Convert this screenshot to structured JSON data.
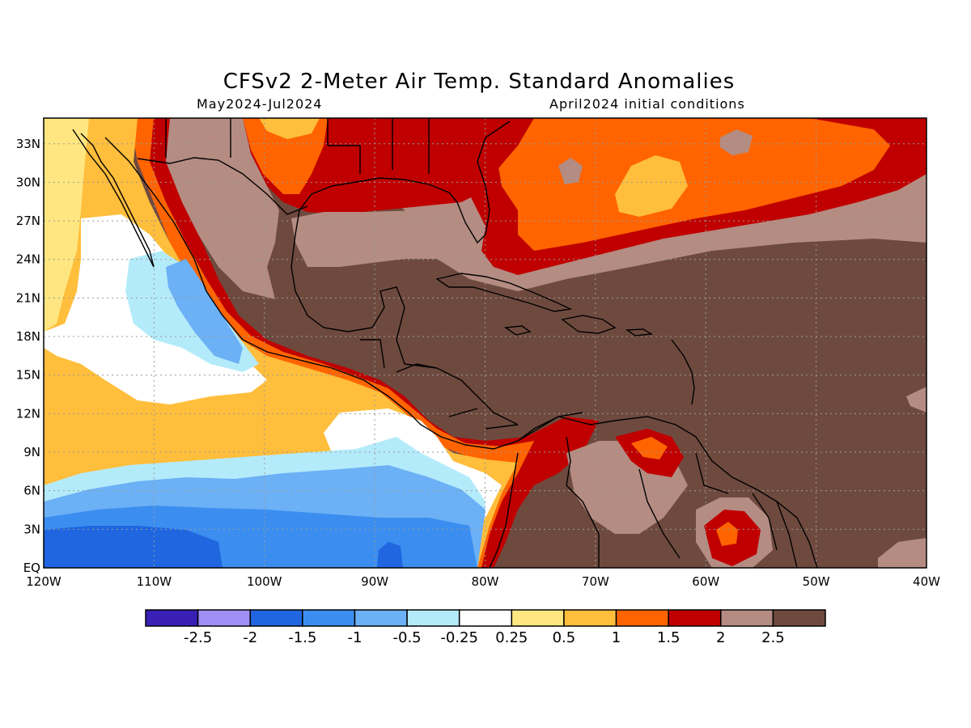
{
  "title": "CFSv2 2-Meter Air Temp. Standard Anomalies",
  "period": "May2024-Jul2024",
  "initial_conditions": "April2024 initial conditions",
  "lat_labels": [
    "33N",
    "30N",
    "27N",
    "24N",
    "21N",
    "18N",
    "15N",
    "12N",
    "9N",
    "6N",
    "3N",
    "EQ"
  ],
  "lon_labels": [
    "120W",
    "110W",
    "100W",
    "90W",
    "80W",
    "70W",
    "60W",
    "50W",
    "40W"
  ],
  "colorbar": {
    "colors": [
      "#3a1fb5",
      "#9f8ff5",
      "#1f66e0",
      "#3b8ef0",
      "#6cb0f5",
      "#b4ebfb",
      "#ffffff",
      "#ffe680",
      "#ffbe3c",
      "#ff6400",
      "#c00000",
      "#b48c82",
      "#6e4a3e"
    ],
    "labels": [
      "-2.5",
      "-2",
      "-1.5",
      "-1",
      "-0.5",
      "-0.25",
      "0.25",
      "0.5",
      "1",
      "1.5",
      "2",
      "2.5"
    ]
  },
  "palette": {
    "brown": "#6e4a3e",
    "tan": "#b48c82",
    "darkred": "#c00000",
    "orange": "#ff6400",
    "lightorange": "#ffbe3c",
    "yellow": "#ffe680",
    "white": "#ffffff",
    "paleblue": "#b4ebfb",
    "lightblue": "#6cb0f5",
    "blue": "#3b8ef0",
    "deepblue": "#1f66e0"
  }
}
